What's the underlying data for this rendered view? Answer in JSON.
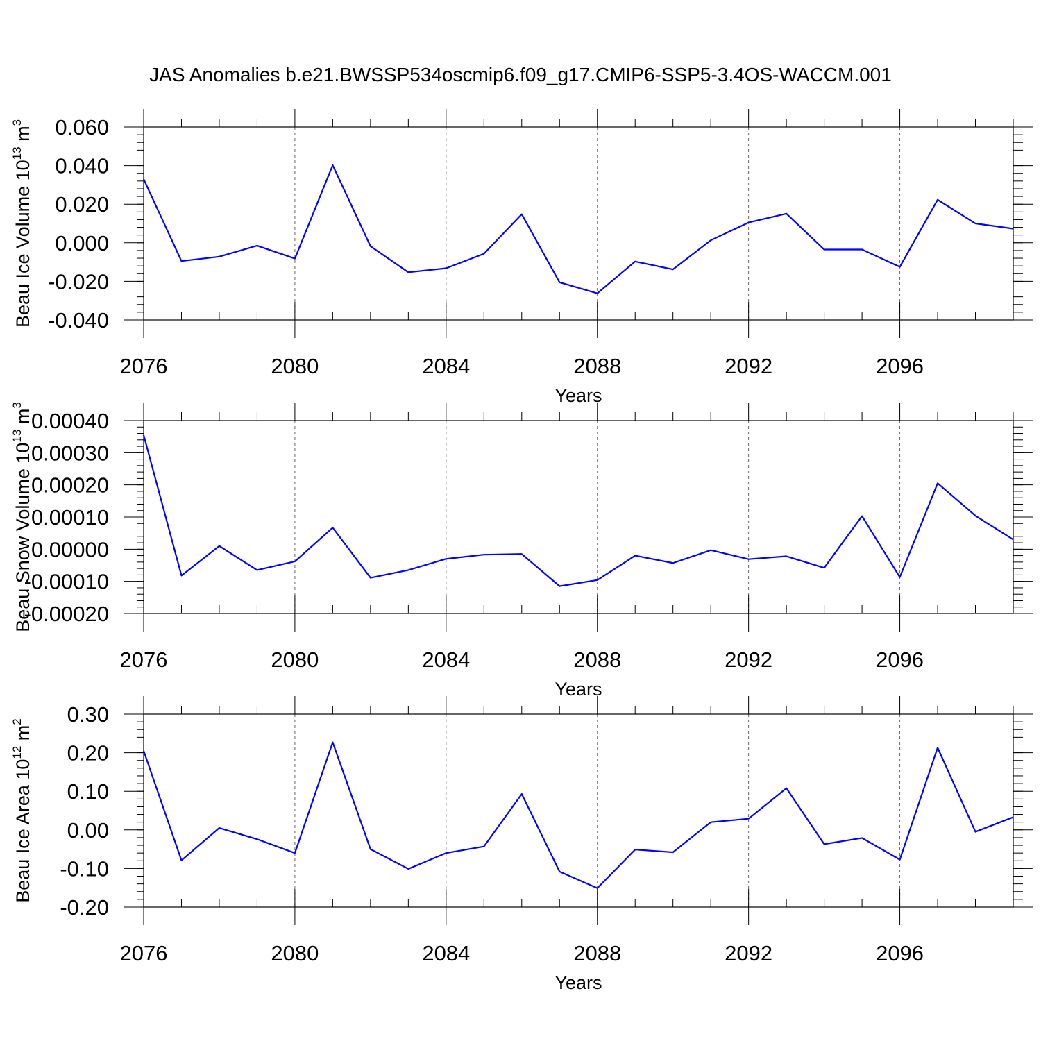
{
  "title": "JAS Anomalies b.e21.BWSSP534oscmip6.f09_g17.CMIP6-SSP5-3.4OS-WACCM.001",
  "colors": {
    "line": "#0000ff",
    "axis": "#000000",
    "grid": "#000000"
  },
  "chart_data": [
    {
      "type": "line",
      "ylabel_main": "Beau Ice Volume 10",
      "ylabel_sup1": "13",
      "ylabel_unit": " m",
      "ylabel_sup2": "3",
      "xlabel": "Years",
      "xlim": [
        2076,
        2099
      ],
      "ylim": [
        -0.04,
        0.06
      ],
      "x_ticks": [
        2076,
        2080,
        2084,
        2088,
        2092,
        2096
      ],
      "x_tick_labels": [
        "2076",
        "2080",
        "2084",
        "2088",
        "2092",
        "2096"
      ],
      "y_ticks": [
        -0.04,
        -0.02,
        0.0,
        0.02,
        0.04,
        0.06
      ],
      "y_tick_labels": [
        "-0.040",
        "-0.020",
        "0.000",
        "0.020",
        "0.040",
        "0.060"
      ],
      "y_minor_step": 0.004,
      "grid": "vertical dashed at major x ticks",
      "x": [
        2076,
        2077,
        2078,
        2079,
        2080,
        2081,
        2082,
        2083,
        2084,
        2085,
        2086,
        2087,
        2088,
        2089,
        2090,
        2091,
        2092,
        2093,
        2094,
        2095,
        2096,
        2097,
        2098,
        2099
      ],
      "y": [
        0.033,
        -0.0095,
        -0.0072,
        -0.0015,
        -0.0082,
        0.0402,
        -0.0018,
        -0.0153,
        -0.0132,
        -0.0057,
        0.0148,
        -0.0205,
        -0.0262,
        -0.0097,
        -0.0138,
        0.0013,
        0.0105,
        0.0151,
        -0.0035,
        -0.0035,
        -0.0125,
        0.0223,
        0.01,
        0.0073
      ]
    },
    {
      "type": "line",
      "ylabel_main": "Beau Snow Volume 10",
      "ylabel_sup1": "13",
      "ylabel_unit": " m",
      "ylabel_sup2": "3",
      "xlabel": "Years",
      "xlim": [
        2076,
        2099
      ],
      "ylim": [
        -0.0002,
        0.0004
      ],
      "x_ticks": [
        2076,
        2080,
        2084,
        2088,
        2092,
        2096
      ],
      "x_tick_labels": [
        "2076",
        "2080",
        "2084",
        "2088",
        "2092",
        "2096"
      ],
      "y_ticks": [
        -0.0002,
        -0.0001,
        0.0,
        0.0001,
        0.0002,
        0.0003,
        0.0004
      ],
      "y_tick_labels": [
        "-0.00020",
        "-0.00010",
        "0.00000",
        "0.00010",
        "0.00020",
        "0.00030",
        "0.00040"
      ],
      "y_minor_step": 2e-05,
      "grid": "vertical dashed at major x ticks",
      "x": [
        2076,
        2077,
        2078,
        2079,
        2080,
        2081,
        2082,
        2083,
        2084,
        2085,
        2086,
        2087,
        2088,
        2089,
        2090,
        2091,
        2092,
        2093,
        2094,
        2095,
        2096,
        2097,
        2098,
        2099
      ],
      "y": [
        0.000355,
        -8.2e-05,
        1e-05,
        -6.5e-05,
        -3.8e-05,
        6.7e-05,
        -8.9e-05,
        -6.5e-05,
        -3e-05,
        -1.7e-05,
        -1.5e-05,
        -0.000115,
        -9.6e-05,
        -2e-05,
        -4.3e-05,
        -3e-06,
        -3.1e-05,
        -2.2e-05,
        -5.8e-05,
        0.000103,
        -8.7e-05,
        0.000205,
        0.000104,
        3e-05
      ]
    },
    {
      "type": "line",
      "ylabel_main": "Beau Ice Area 10",
      "ylabel_sup1": "12",
      "ylabel_unit": " m",
      "ylabel_sup2": "2",
      "xlabel": "Years",
      "xlim": [
        2076,
        2099
      ],
      "ylim": [
        -0.2,
        0.3
      ],
      "x_ticks": [
        2076,
        2080,
        2084,
        2088,
        2092,
        2096
      ],
      "x_tick_labels": [
        "2076",
        "2080",
        "2084",
        "2088",
        "2092",
        "2096"
      ],
      "y_ticks": [
        -0.2,
        -0.1,
        0.0,
        0.1,
        0.2,
        0.3
      ],
      "y_tick_labels": [
        "-0.20",
        "-0.10",
        "0.00",
        "0.10",
        "0.20",
        "0.30"
      ],
      "y_minor_step": 0.02,
      "grid": "vertical dashed at major x ticks",
      "x": [
        2076,
        2077,
        2078,
        2079,
        2080,
        2081,
        2082,
        2083,
        2084,
        2085,
        2086,
        2087,
        2088,
        2089,
        2090,
        2091,
        2092,
        2093,
        2094,
        2095,
        2096,
        2097,
        2098,
        2099
      ],
      "y": [
        0.205,
        -0.079,
        0.005,
        -0.024,
        -0.06,
        0.227,
        -0.05,
        -0.101,
        -0.06,
        -0.043,
        0.093,
        -0.108,
        -0.151,
        -0.051,
        -0.058,
        0.02,
        0.029,
        0.108,
        -0.037,
        -0.021,
        -0.077,
        0.213,
        -0.005,
        0.033
      ]
    }
  ]
}
